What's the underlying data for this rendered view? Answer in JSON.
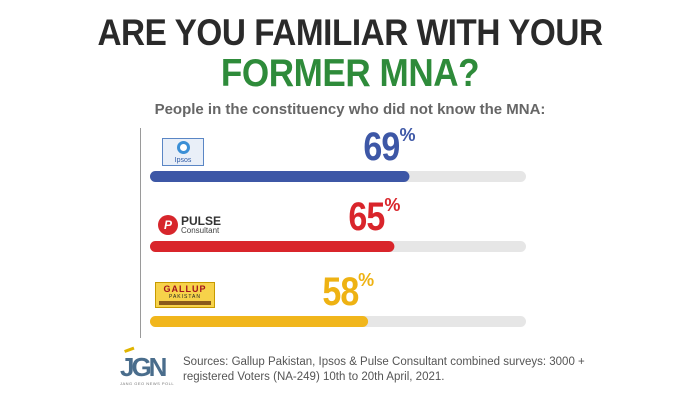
{
  "header": {
    "title_line1": "ARE YOU FAMILIAR WITH YOUR",
    "title_line2": "FORMER MNA?",
    "subtitle": "People in the constituency who did not know the MNA:"
  },
  "chart_data": {
    "type": "bar",
    "orientation": "horizontal",
    "title": "ARE YOU FAMILIAR WITH YOUR FORMER MNA?",
    "subtitle": "People in the constituency who did not know the MNA:",
    "categories": [
      "Ipsos",
      "Pulse Consultant",
      "Gallup Pakistan"
    ],
    "values": [
      69,
      65,
      58
    ],
    "unit": "%",
    "value_labels": [
      "69",
      "65",
      "58"
    ],
    "xlim": [
      0,
      100
    ],
    "grid": false,
    "legend": "none",
    "bar_colors": [
      "#3d57a6",
      "#d9252b",
      "#f1b61c"
    ],
    "track_color": "#e6e6e6"
  },
  "logos": {
    "ipsos": {
      "text": "Ipsos",
      "color": "#2d5aa6"
    },
    "pulse": {
      "line1": "PULSE",
      "line2": "Consultant",
      "mark": "P",
      "color": "#d7262c"
    },
    "gallup": {
      "line1": "GALLUP",
      "line2": "PAKISTAN",
      "color": "#a3131d"
    }
  },
  "footer": {
    "logo_text": "JGN",
    "logo_caption": "JANG GEO NEWS POLL",
    "source": "Sources: Gallup Pakistan, Ipsos & Pulse Consultant combined surveys: 3000 + registered Voters (NA-249) 10th to 20th April, 2021."
  }
}
